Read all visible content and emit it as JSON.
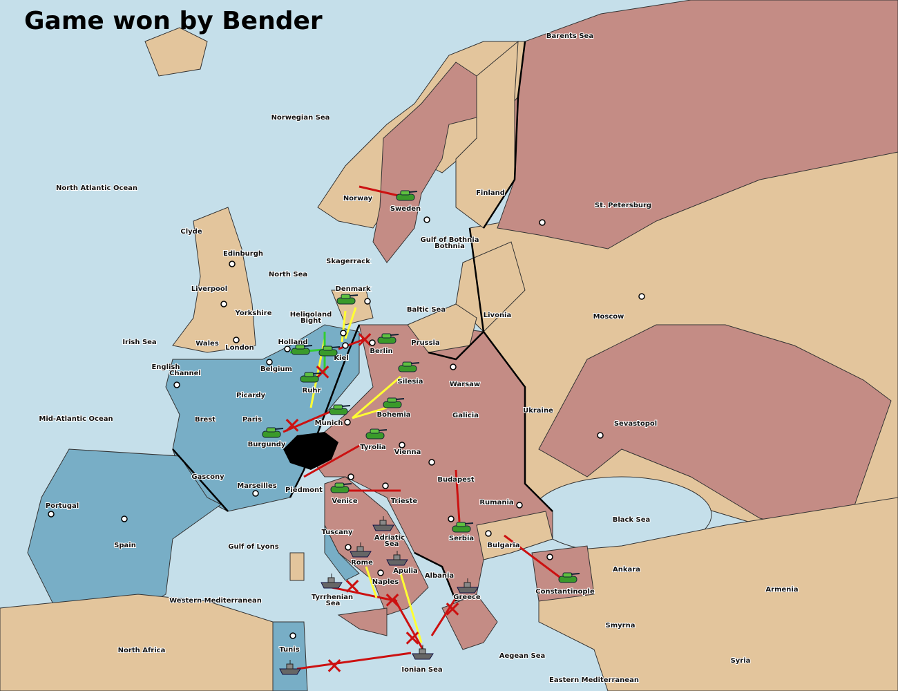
{
  "title": "Game won by Bender",
  "colors": {
    "sea": "#c5dfea",
    "neutral": "#e3c59c",
    "pink": "#c48c85",
    "blue": "#78aec6",
    "order_move": "#cc1111",
    "order_support": "#ffff33",
    "order_convoy": "#33cc33"
  },
  "territories": {
    "barents": "Barents Sea",
    "norwegian": "Norwegian Sea",
    "north_atlantic": "North Atlantic Ocean",
    "norway": "Norway",
    "sweden": "Sweden",
    "finland": "Finland",
    "stp": "St. Petersburg",
    "gob": "Gulf of Bothnia",
    "gob2": "Bothnia",
    "clyde": "Clyde",
    "edinburgh": "Edinburgh",
    "north_sea": "North Sea",
    "skagerrack": "Skagerrack",
    "liverpool": "Liverpool",
    "denmark": "Denmark",
    "baltic": "Baltic Sea",
    "livonia": "Livonia",
    "moscow": "Moscow",
    "yorkshire": "Yorkshire",
    "heligoland": "Heligoland",
    "bight": "Bight",
    "irish": "Irish Sea",
    "wales": "Wales",
    "london": "London",
    "holland": "Holland",
    "kiel": "Kiel",
    "berlin": "Berlin",
    "prussia": "Prussia",
    "english": "English",
    "channel": "Channel",
    "belgium": "Belgium",
    "warsaw": "Warsaw",
    "silesia": "Silesia",
    "ruhr": "Ruhr",
    "picardy": "Picardy",
    "ukraine": "Ukraine",
    "mid_atlantic": "Mid-Atlantic Ocean",
    "brest": "Brest",
    "paris": "Paris",
    "bohemia": "Bohemia",
    "galicia": "Galicia",
    "munich": "Munich",
    "sevastopol": "Sevastopol",
    "burgundy": "Burgundy",
    "tyrolia": "Tyrolia",
    "vienna": "Vienna",
    "gascony": "Gascony",
    "budapest": "Budapest",
    "marseilles": "Marseilles",
    "piedmont": "Piedmont",
    "venice": "Venice",
    "trieste": "Trieste",
    "rumania": "Rumania",
    "portugal": "Portugal",
    "spain": "Spain",
    "black_sea": "Black Sea",
    "tuscany": "Tuscany",
    "adriatic": "Adriatic",
    "adriatic2": "Sea",
    "serbia": "Serbia",
    "bulgaria": "Bulgaria",
    "gulf_lyons": "Gulf of Lyons",
    "rome": "Rome",
    "apulia": "Apulia",
    "ankara": "Ankara",
    "albania": "Albania",
    "naples": "Naples",
    "armenia": "Armenia",
    "constantinople": "Constantinople",
    "greece": "Greece",
    "western_med": "Western Mediterranean",
    "tyrrhenian": "Tyrrhenian",
    "tyrrhenian2": "Sea",
    "smyrna": "Smyrna",
    "north_africa": "North Africa",
    "tunis": "Tunis",
    "aegean": "Aegean Sea",
    "ionian": "Ionian Sea",
    "syria": "Syria",
    "eastern_med": "Eastern Mediterranean"
  },
  "units": [
    {
      "type": "army",
      "at": "Sweden"
    },
    {
      "type": "army",
      "at": "Denmark"
    },
    {
      "type": "army",
      "at": "Berlin"
    },
    {
      "type": "army",
      "at": "Holland"
    },
    {
      "type": "army",
      "at": "Kiel"
    },
    {
      "type": "army",
      "at": "Silesia"
    },
    {
      "type": "army",
      "at": "Ruhr"
    },
    {
      "type": "army",
      "at": "Bohemia"
    },
    {
      "type": "army",
      "at": "Munich"
    },
    {
      "type": "army",
      "at": "Burgundy"
    },
    {
      "type": "army",
      "at": "Tyrolia"
    },
    {
      "type": "army",
      "at": "Venice"
    },
    {
      "type": "army",
      "at": "Serbia"
    },
    {
      "type": "army",
      "at": "Constantinople"
    },
    {
      "type": "fleet",
      "at": "Adriatic Sea"
    },
    {
      "type": "fleet",
      "at": "Rome"
    },
    {
      "type": "fleet",
      "at": "Apulia"
    },
    {
      "type": "fleet",
      "at": "Tyrrhenian Sea"
    },
    {
      "type": "fleet",
      "at": "Greece"
    },
    {
      "type": "fleet",
      "at": "Ionian Sea"
    },
    {
      "type": "fleet",
      "at": "Tunis"
    }
  ]
}
